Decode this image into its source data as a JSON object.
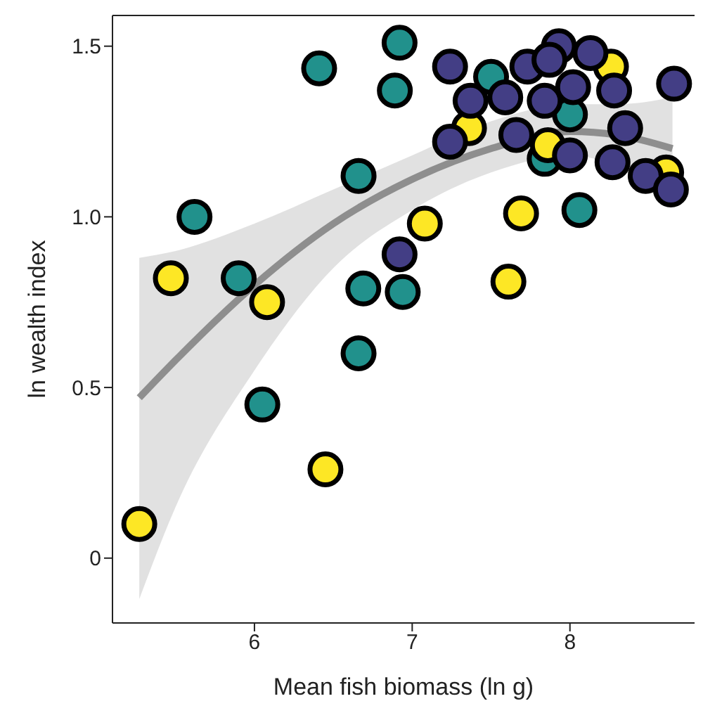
{
  "chart_data": {
    "type": "scatter",
    "xlabel": "Mean fish biomass (ln g)",
    "ylabel": "ln wealth index",
    "xlim": [
      5.1,
      8.79
    ],
    "ylim": [
      -0.19,
      1.59
    ],
    "xticks": [
      6,
      7,
      8
    ],
    "yticks": [
      0,
      0.5,
      {
        "value": 1,
        "label": "1.0"
      },
      1.5
    ],
    "marker": "circle",
    "series": [
      {
        "type": "line",
        "marker": "none",
        "color": "#7f7f7f",
        "x": [
          5.27,
          5.5,
          6,
          6.5,
          7,
          7.5,
          8,
          8.3,
          8.65
        ],
        "values": [
          0.47,
          0.58,
          0.8,
          0.98,
          1.11,
          1.2,
          1.25,
          1.24,
          1.2
        ],
        "lower": [
          -0.12,
          0.15,
          0.55,
          0.85,
          1.02,
          1.13,
          1.18,
          1.15,
          1.08
        ],
        "upper": [
          0.88,
          0.9,
          0.98,
          1.08,
          1.18,
          1.28,
          1.33,
          1.33,
          1.35
        ]
      },
      {
        "color": "#21918c",
        "x": [
          6.41,
          6.05,
          5.62,
          5.9,
          6.66,
          6.69,
          6.94,
          6.92,
          6.89,
          7.5,
          8.0,
          8.06,
          7.84,
          6.66
        ],
        "values": [
          1.435,
          0.45,
          1.0,
          0.82,
          1.12,
          0.79,
          0.78,
          1.51,
          1.37,
          1.41,
          1.3,
          1.02,
          1.17,
          0.6
        ]
      },
      {
        "color": "#fde725",
        "x": [
          5.27,
          5.47,
          6.08,
          6.45,
          7.08,
          7.61,
          7.69,
          7.36,
          7.86,
          8.61,
          8.26
        ],
        "values": [
          0.1,
          0.82,
          0.75,
          0.26,
          0.98,
          0.81,
          1.01,
          1.26,
          1.21,
          1.13,
          1.44
        ]
      },
      {
        "color": "#433e85",
        "x": [
          6.92,
          7.24,
          7.37,
          7.59,
          7.73,
          7.93,
          8.13,
          8.02,
          8.28,
          8.66,
          7.24,
          7.66,
          8.0,
          8.27,
          8.35,
          8.48,
          8.64,
          7.87,
          7.84
        ],
        "values": [
          0.89,
          1.44,
          1.34,
          1.35,
          1.44,
          1.5,
          1.48,
          1.38,
          1.37,
          1.39,
          1.22,
          1.24,
          1.18,
          1.16,
          1.26,
          1.12,
          1.08,
          1.46,
          1.34
        ]
      }
    ]
  }
}
